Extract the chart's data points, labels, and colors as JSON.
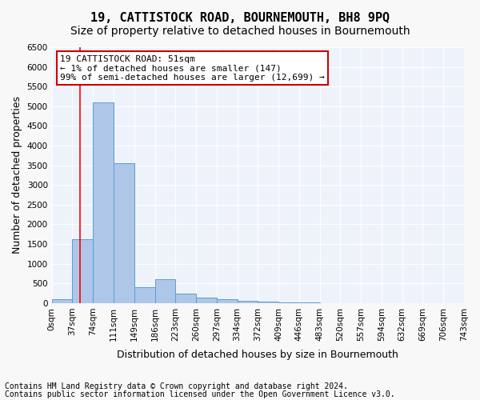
{
  "title": "19, CATTISTOCK ROAD, BOURNEMOUTH, BH8 9PQ",
  "subtitle": "Size of property relative to detached houses in Bournemouth",
  "xlabel": "Distribution of detached houses by size in Bournemouth",
  "ylabel": "Number of detached properties",
  "bin_labels": [
    "0sqm",
    "37sqm",
    "74sqm",
    "111sqm",
    "149sqm",
    "186sqm",
    "223sqm",
    "260sqm",
    "297sqm",
    "334sqm",
    "372sqm",
    "409sqm",
    "446sqm",
    "483sqm",
    "520sqm",
    "557sqm",
    "594sqm",
    "632sqm",
    "669sqm",
    "706sqm",
    "743sqm"
  ],
  "bar_values": [
    100,
    1620,
    5100,
    3550,
    400,
    600,
    250,
    150,
    100,
    50,
    30,
    20,
    10,
    5,
    3,
    2,
    1,
    1,
    1,
    0
  ],
  "bar_color": "#aec6e8",
  "bar_edge_color": "#5a9fd4",
  "ylim": [
    0,
    6500
  ],
  "yticks": [
    0,
    500,
    1000,
    1500,
    2000,
    2500,
    3000,
    3500,
    4000,
    4500,
    5000,
    5500,
    6000,
    6500
  ],
  "red_line_x": 1.37,
  "annotation_title": "19 CATTISTOCK ROAD: 51sqm",
  "annotation_line1": "← 1% of detached houses are smaller (147)",
  "annotation_line2": "99% of semi-detached houses are larger (12,699) →",
  "annotation_box_color": "#ffffff",
  "annotation_box_edge_color": "#cc0000",
  "footer_line1": "Contains HM Land Registry data © Crown copyright and database right 2024.",
  "footer_line2": "Contains public sector information licensed under the Open Government Licence v3.0.",
  "background_color": "#eef3fb",
  "grid_color": "#ffffff",
  "title_fontsize": 11,
  "subtitle_fontsize": 10,
  "axis_label_fontsize": 9,
  "tick_fontsize": 7.5,
  "footer_fontsize": 7
}
